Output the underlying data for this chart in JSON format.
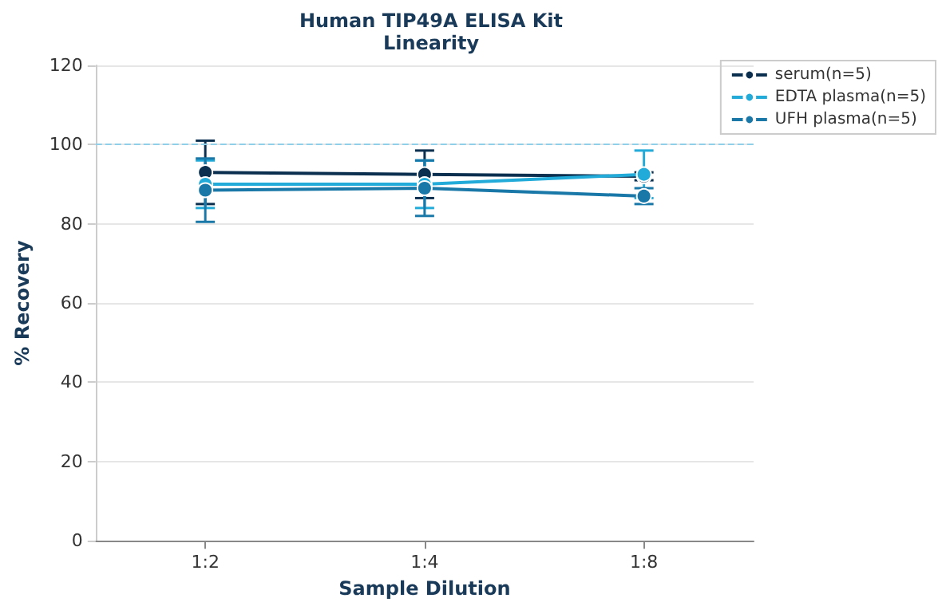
{
  "chart_data": {
    "type": "line",
    "title": "Human TIP49A ELISA Kit",
    "subtitle": "Linearity",
    "xlabel": "Sample Dilution",
    "ylabel": "% Recovery",
    "categories": [
      "1:2",
      "1:4",
      "1:8"
    ],
    "series": [
      {
        "name": "serum(n=5)",
        "color": "#0b2f4f",
        "values": [
          93,
          92.5,
          92
        ],
        "errors": [
          8,
          6,
          1
        ]
      },
      {
        "name": "EDTA plasma(n=5)",
        "color": "#22aad8",
        "values": [
          90,
          90,
          92.5
        ],
        "errors": [
          6,
          6,
          6
        ]
      },
      {
        "name": "UFH plasma(n=5)",
        "color": "#1a78a8",
        "values": [
          88.5,
          89,
          87
        ],
        "errors": [
          8,
          7,
          2
        ]
      }
    ],
    "ylim": [
      0,
      120
    ],
    "yticks": [
      0,
      20,
      40,
      60,
      80,
      100,
      120
    ],
    "grid": "y",
    "legend": "top right",
    "marker": "circle",
    "line_style": "solid",
    "ref_lines": [
      {
        "axis": "y",
        "value": 100,
        "label": null,
        "color": "#8fd0e8",
        "line_style": "dashed"
      }
    ]
  }
}
